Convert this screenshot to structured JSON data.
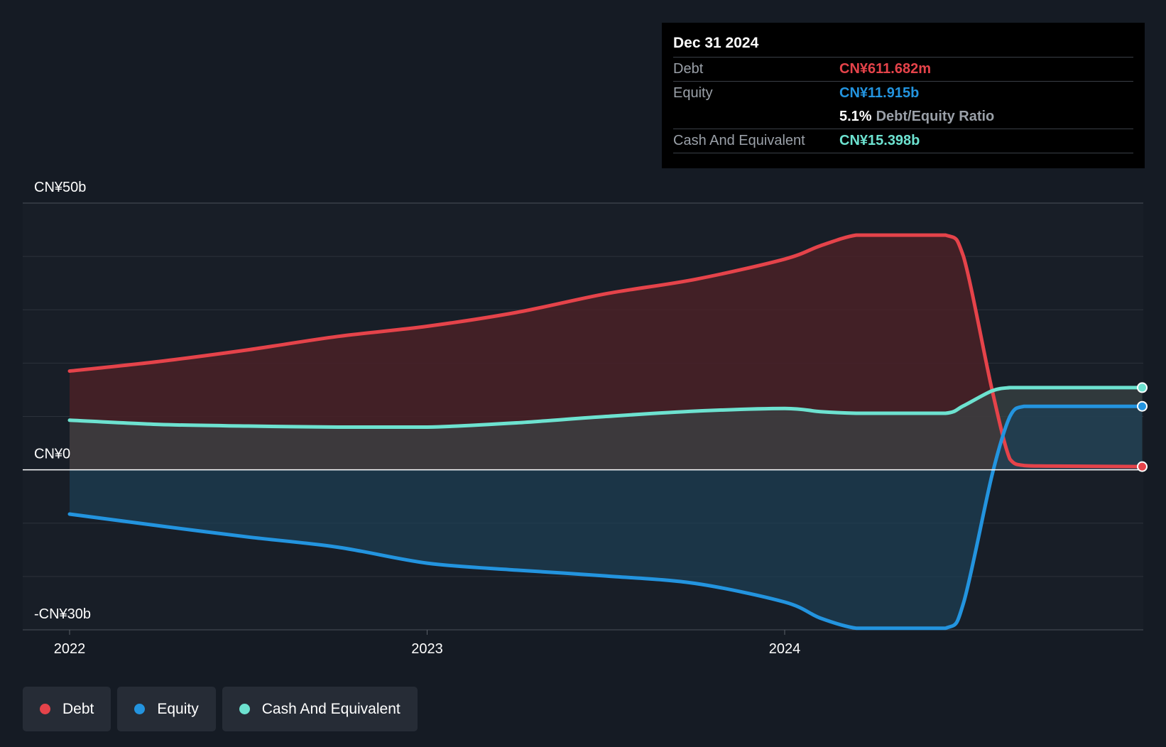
{
  "chart_data": {
    "type": "area",
    "y_ticks": [
      "CN¥50b",
      "CN¥0",
      "-CN¥30b"
    ],
    "ylim": [
      -30,
      50
    ],
    "x_ticks": [
      "2022",
      "2023",
      "2024"
    ],
    "xlim": [
      2021.87,
      2025.0
    ],
    "grid": true,
    "series": [
      {
        "name": "Debt",
        "color": "#e5434a",
        "fill": "#4a2127",
        "x": [
          2022.0,
          2022.25,
          2022.5,
          2022.75,
          2023.0,
          2023.25,
          2023.5,
          2023.75,
          2024.0,
          2024.1,
          2024.2,
          2024.3,
          2024.45,
          2024.5,
          2024.58,
          2024.63,
          2024.67,
          2024.75,
          2025.0
        ],
        "values": [
          18.5,
          20.3,
          22.5,
          25.0,
          26.9,
          29.5,
          33.0,
          35.7,
          39.5,
          42.0,
          44.0,
          44.0,
          44.0,
          40.0,
          15.0,
          2.0,
          0.8,
          0.7,
          0.6
        ]
      },
      {
        "name": "Equity",
        "color": "#2394df",
        "fill": "#1d3e55",
        "x": [
          2022.0,
          2022.25,
          2022.5,
          2022.75,
          2023.0,
          2023.25,
          2023.5,
          2023.75,
          2024.0,
          2024.1,
          2024.2,
          2024.3,
          2024.45,
          2024.5,
          2024.58,
          2024.63,
          2024.67,
          2024.75,
          2025.0
        ],
        "values": [
          -8.3,
          -10.5,
          -12.6,
          -14.5,
          -17.5,
          -18.8,
          -19.9,
          -21.3,
          -24.8,
          -27.8,
          -29.7,
          -29.7,
          -29.7,
          -25.0,
          -1.0,
          10.0,
          11.9,
          11.9,
          11.9
        ]
      },
      {
        "name": "Cash And Equivalent",
        "color": "#6de2d0",
        "fill": "#3a4446",
        "x": [
          2022.0,
          2022.25,
          2022.5,
          2022.75,
          2023.0,
          2023.25,
          2023.5,
          2023.75,
          2024.0,
          2024.1,
          2024.2,
          2024.3,
          2024.45,
          2024.5,
          2024.58,
          2024.63,
          2024.67,
          2024.75,
          2025.0
        ],
        "values": [
          9.3,
          8.5,
          8.2,
          8.0,
          8.0,
          8.8,
          10.0,
          11.0,
          11.5,
          10.9,
          10.6,
          10.6,
          10.6,
          12.0,
          14.8,
          15.4,
          15.4,
          15.4,
          15.4
        ]
      }
    ]
  },
  "tooltip": {
    "date": "Dec 31 2024",
    "rows": [
      {
        "label": "Debt",
        "value": "CN¥611.682m",
        "color": "#e5434a"
      },
      {
        "label": "Equity",
        "value": "CN¥11.915b",
        "color": "#2394df"
      },
      {
        "ratio_value": "5.1%",
        "ratio_label": "Debt/Equity Ratio"
      },
      {
        "label": "Cash And Equivalent",
        "value": "CN¥15.398b",
        "color": "#6de2d0"
      }
    ]
  },
  "legend": [
    {
      "label": "Debt",
      "color": "#e5434a"
    },
    {
      "label": "Equity",
      "color": "#2394df"
    },
    {
      "label": "Cash And Equivalent",
      "color": "#6de2d0"
    }
  ]
}
